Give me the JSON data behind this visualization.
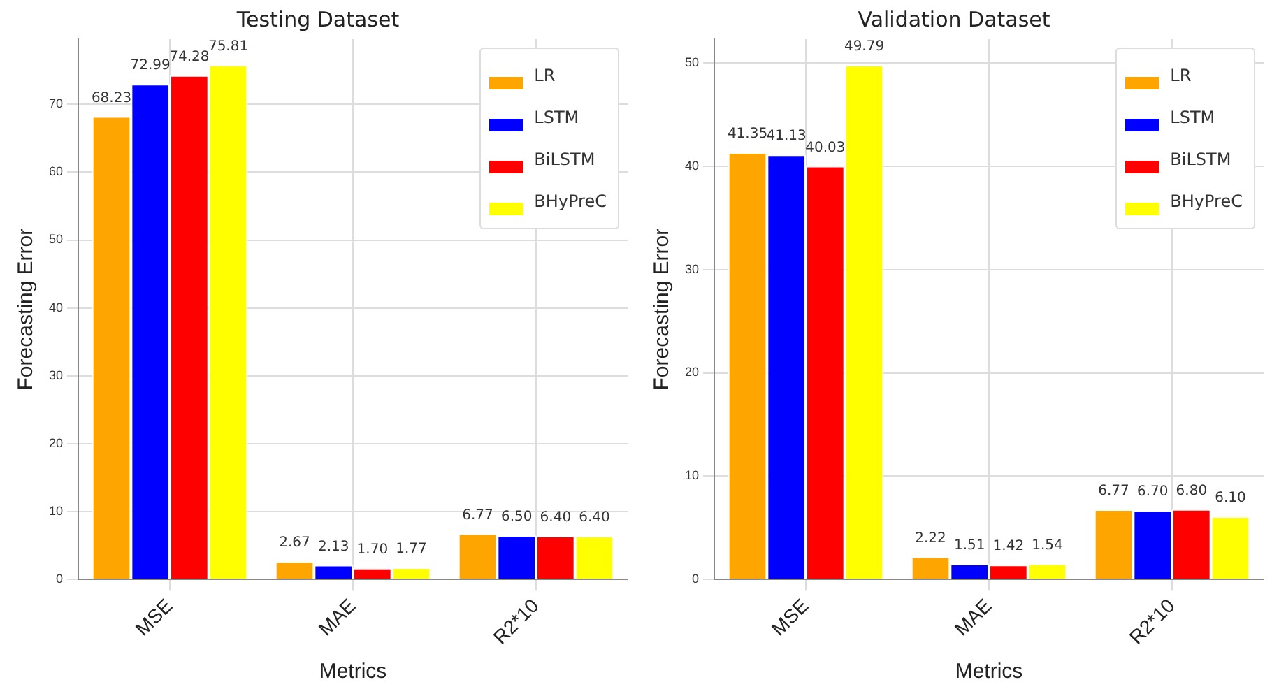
{
  "chart_data": [
    {
      "type": "bar",
      "title": "Testing Dataset",
      "xlabel": "Metrics",
      "ylabel": "Forecasting Error",
      "categories": [
        "MSE",
        "MAE",
        "R2*10"
      ],
      "series": [
        {
          "name": "LR",
          "color": "#ffa500",
          "values": [
            68.23,
            2.67,
            6.77
          ],
          "value_labels": [
            "68.23",
            "2.67",
            "6.77"
          ]
        },
        {
          "name": "LSTM",
          "color": "#0000ff",
          "values": [
            72.99,
            2.13,
            6.5
          ],
          "value_labels": [
            "72.99",
            "2.13",
            "6.50"
          ]
        },
        {
          "name": "BiLSTM",
          "color": "#ff0000",
          "values": [
            74.28,
            1.7,
            6.4
          ],
          "value_labels": [
            "74.28",
            "1.70",
            "6.40"
          ]
        },
        {
          "name": "BHyPreC",
          "color": "#ffff00",
          "values": [
            75.81,
            1.77,
            6.4
          ],
          "value_labels": [
            "75.81",
            "1.77",
            "6.40"
          ]
        }
      ],
      "ylim": [
        0,
        79.6
      ],
      "yticks": [
        0,
        10,
        20,
        30,
        40,
        50,
        60,
        70
      ],
      "grid": true,
      "legend": "top right"
    },
    {
      "type": "bar",
      "title": "Validation Dataset",
      "xlabel": "Metrics",
      "ylabel": "Forecasting Error",
      "categories": [
        "MSE",
        "MAE",
        "R2*10"
      ],
      "series": [
        {
          "name": "LR",
          "color": "#ffa500",
          "values": [
            41.35,
            2.22,
            6.77
          ],
          "value_labels": [
            "41.35",
            "2.22",
            "6.77"
          ]
        },
        {
          "name": "LSTM",
          "color": "#0000ff",
          "values": [
            41.13,
            1.51,
            6.7
          ],
          "value_labels": [
            "41.13",
            "1.51",
            "6.70"
          ]
        },
        {
          "name": "BiLSTM",
          "color": "#ff0000",
          "values": [
            40.03,
            1.42,
            6.8
          ],
          "value_labels": [
            "40.03",
            "1.42",
            "6.80"
          ]
        },
        {
          "name": "BHyPreC",
          "color": "#ffff00",
          "values": [
            49.79,
            1.54,
            6.1
          ],
          "value_labels": [
            "49.79",
            "1.54",
            "6.10"
          ]
        }
      ],
      "ylim": [
        0,
        52.3
      ],
      "yticks": [
        0,
        10,
        20,
        30,
        40,
        50
      ],
      "grid": true,
      "legend": "top right"
    }
  ]
}
